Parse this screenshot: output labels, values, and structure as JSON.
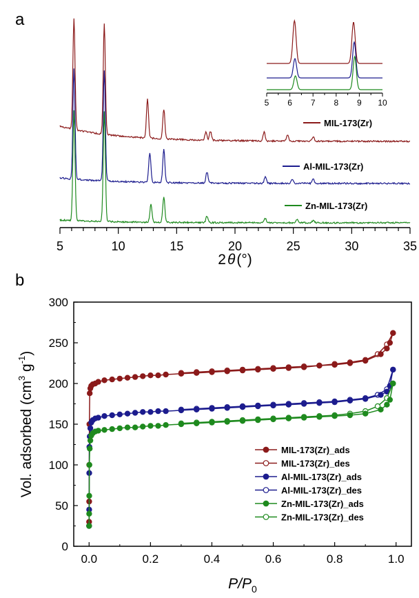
{
  "panel_a": {
    "label": "a"
  },
  "panel_b": {
    "label": "b"
  },
  "colors": {
    "mil": "#8b1a1a",
    "al": "#1c1c8e",
    "zn": "#1e8a1e"
  },
  "chart_data": [
    {
      "type": "line",
      "panel": "a",
      "xlabel_main": "2",
      "xlabel_theta": "θ",
      "xlabel_unit": "(°)",
      "xlim": [
        5,
        35
      ],
      "x_ticks": [
        5,
        10,
        15,
        20,
        25,
        30,
        35
      ],
      "x_tick_labels": [
        "5",
        "10",
        "15",
        "20",
        "25",
        "30",
        "35"
      ],
      "series": [
        {
          "name": "MIL-173(Zr)",
          "color": "#8b1a1a",
          "peaks": [
            [
              6.2,
              100
            ],
            [
              8.8,
              100
            ],
            [
              12.5,
              35
            ],
            [
              13.9,
              27
            ],
            [
              17.5,
              7
            ],
            [
              17.9,
              8
            ],
            [
              22.5,
              8
            ],
            [
              24.5,
              6
            ],
            [
              26.7,
              4
            ]
          ]
        },
        {
          "name": "Al-MIL-173(Zr)",
          "color": "#1c1c8e",
          "peaks": [
            [
              6.2,
              100
            ],
            [
              8.8,
              100
            ],
            [
              12.7,
              27
            ],
            [
              13.9,
              30
            ],
            [
              17.6,
              10
            ],
            [
              22.6,
              6
            ],
            [
              24.9,
              4
            ],
            [
              26.7,
              4
            ]
          ]
        },
        {
          "name": "Zn-MIL-173(Zr)",
          "color": "#1e8a1e",
          "peaks": [
            [
              6.2,
              100
            ],
            [
              8.8,
              100
            ],
            [
              12.8,
              16
            ],
            [
              13.9,
              23
            ],
            [
              17.6,
              6
            ],
            [
              22.6,
              4
            ],
            [
              25.3,
              3
            ],
            [
              26.7,
              2
            ]
          ]
        }
      ],
      "inset": {
        "xlim": [
          5,
          10
        ],
        "x_tick_labels": [
          "5",
          "6",
          "7",
          "8",
          "9",
          "10"
        ]
      }
    },
    {
      "type": "line",
      "panel": "b",
      "xlabel": "P/P",
      "xlabel_sub": "0",
      "ylabel": "Vol. adsorbed (cm",
      "ylabel_sup1": "3",
      "ylabel_mid": " g",
      "ylabel_sup2": "-1",
      "ylabel_end": ")",
      "xlim": [
        -0.05,
        1.05
      ],
      "ylim": [
        0,
        300
      ],
      "x_tick_labels": [
        "0.0",
        "0.2",
        "0.4",
        "0.6",
        "0.8",
        "1.0"
      ],
      "y_tick_labels": [
        "0",
        "50",
        "100",
        "150",
        "200",
        "250",
        "300"
      ],
      "legend_position": "bottom-right",
      "series": [
        {
          "name": "MIL-173(Zr)_ads",
          "color": "#8b1a1a",
          "filled": true,
          "x": [
            0.0001,
            0.0003,
            0.0006,
            0.001,
            0.002,
            0.004,
            0.007,
            0.012,
            0.02,
            0.03,
            0.05,
            0.075,
            0.1,
            0.125,
            0.15,
            0.175,
            0.2,
            0.225,
            0.25,
            0.3,
            0.35,
            0.4,
            0.45,
            0.5,
            0.55,
            0.6,
            0.65,
            0.7,
            0.75,
            0.8,
            0.85,
            0.9,
            0.95,
            0.97,
            0.98,
            0.99
          ],
          "y": [
            30,
            55,
            100,
            150,
            188,
            194,
            197,
            199,
            200,
            202,
            204,
            205,
            206,
            207,
            208,
            209,
            210,
            210,
            211,
            212,
            213,
            214,
            215,
            216,
            217,
            218,
            219,
            220,
            222,
            223,
            225,
            228,
            236,
            243,
            250,
            262
          ]
        },
        {
          "name": "MIL-173(Zr)_des",
          "color": "#8b1a1a",
          "filled": false,
          "x": [
            0.99,
            0.97,
            0.94,
            0.9,
            0.85,
            0.8,
            0.75,
            0.7,
            0.65,
            0.6,
            0.55,
            0.5,
            0.45,
            0.4,
            0.35,
            0.3
          ],
          "y": [
            262,
            248,
            236,
            229,
            226,
            224,
            222,
            221,
            220,
            219,
            218,
            217,
            216,
            215,
            214,
            213
          ]
        },
        {
          "name": "Al-MIL-173(Zr)_ads",
          "color": "#1c1c8e",
          "filled": true,
          "x": [
            0.0001,
            0.0003,
            0.0006,
            0.001,
            0.002,
            0.004,
            0.007,
            0.012,
            0.02,
            0.03,
            0.05,
            0.075,
            0.1,
            0.125,
            0.15,
            0.175,
            0.2,
            0.225,
            0.25,
            0.3,
            0.35,
            0.4,
            0.45,
            0.5,
            0.55,
            0.6,
            0.65,
            0.7,
            0.75,
            0.8,
            0.85,
            0.9,
            0.95,
            0.97,
            0.98,
            0.99
          ],
          "y": [
            25,
            45,
            90,
            122,
            135,
            145,
            152,
            155,
            157,
            158,
            160,
            161,
            162,
            163,
            164,
            165,
            165,
            166,
            166,
            167,
            168,
            169,
            170,
            171,
            172,
            173,
            174,
            175,
            176,
            177,
            179,
            181,
            186,
            190,
            197,
            217
          ]
        },
        {
          "name": "Al-MIL-173(Zr)_des",
          "color": "#1c1c8e",
          "filled": false,
          "x": [
            0.99,
            0.97,
            0.94,
            0.9,
            0.85,
            0.8,
            0.75,
            0.7,
            0.65,
            0.6,
            0.55,
            0.5,
            0.45,
            0.4,
            0.35,
            0.3
          ],
          "y": [
            217,
            193,
            186,
            182,
            180,
            178,
            177,
            176,
            175,
            174,
            173,
            172,
            171,
            170,
            169,
            168
          ]
        },
        {
          "name": "Zn-MIL-173(Zr)_ads",
          "color": "#1e8a1e",
          "filled": true,
          "x": [
            0.0001,
            0.0003,
            0.0006,
            0.001,
            0.002,
            0.004,
            0.007,
            0.012,
            0.02,
            0.03,
            0.05,
            0.075,
            0.1,
            0.125,
            0.15,
            0.175,
            0.2,
            0.225,
            0.25,
            0.3,
            0.35,
            0.4,
            0.45,
            0.5,
            0.55,
            0.6,
            0.65,
            0.7,
            0.75,
            0.8,
            0.85,
            0.9,
            0.95,
            0.97,
            0.98,
            0.99
          ],
          "y": [
            25,
            40,
            62,
            100,
            120,
            130,
            136,
            139,
            141,
            142,
            143,
            144,
            145,
            146,
            146,
            147,
            148,
            148,
            149,
            150,
            151,
            152,
            153,
            154,
            155,
            156,
            157,
            158,
            159,
            160,
            161,
            163,
            168,
            174,
            180,
            200
          ]
        },
        {
          "name": "Zn-MIL-173(Zr)_des",
          "color": "#1e8a1e",
          "filled": false,
          "x": [
            0.99,
            0.97,
            0.94,
            0.9,
            0.85,
            0.8,
            0.75,
            0.7,
            0.65,
            0.6,
            0.55,
            0.5,
            0.45,
            0.4,
            0.35,
            0.3
          ],
          "y": [
            200,
            182,
            172,
            166,
            163,
            161,
            160,
            159,
            158,
            157,
            156,
            155,
            154,
            153,
            152,
            151
          ]
        }
      ]
    }
  ]
}
